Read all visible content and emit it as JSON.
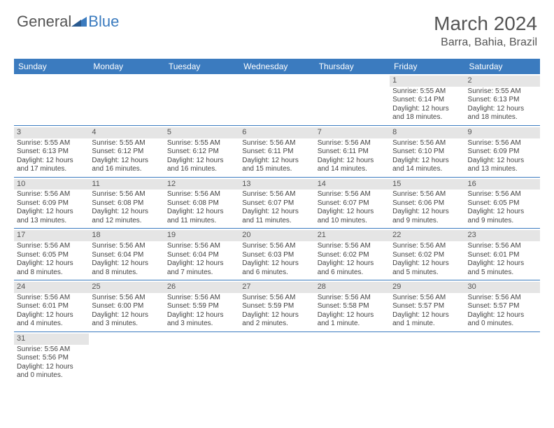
{
  "logo": {
    "text1": "General",
    "text2": "Blue"
  },
  "header": {
    "month": "March 2024",
    "location": "Barra, Bahia, Brazil"
  },
  "dayNames": [
    "Sunday",
    "Monday",
    "Tuesday",
    "Wednesday",
    "Thursday",
    "Friday",
    "Saturday"
  ],
  "colors": {
    "headerBg": "#3b7bbf",
    "text": "#444444",
    "grayBar": "#e5e5e5"
  },
  "weeks": [
    [
      null,
      null,
      null,
      null,
      null,
      {
        "d": "1",
        "sr": "5:55 AM",
        "ss": "6:14 PM",
        "dl1": "12 hours",
        "dl2": "and 18 minutes."
      },
      {
        "d": "2",
        "sr": "5:55 AM",
        "ss": "6:13 PM",
        "dl1": "12 hours",
        "dl2": "and 18 minutes."
      }
    ],
    [
      {
        "d": "3",
        "sr": "5:55 AM",
        "ss": "6:13 PM",
        "dl1": "12 hours",
        "dl2": "and 17 minutes."
      },
      {
        "d": "4",
        "sr": "5:55 AM",
        "ss": "6:12 PM",
        "dl1": "12 hours",
        "dl2": "and 16 minutes."
      },
      {
        "d": "5",
        "sr": "5:55 AM",
        "ss": "6:12 PM",
        "dl1": "12 hours",
        "dl2": "and 16 minutes."
      },
      {
        "d": "6",
        "sr": "5:56 AM",
        "ss": "6:11 PM",
        "dl1": "12 hours",
        "dl2": "and 15 minutes."
      },
      {
        "d": "7",
        "sr": "5:56 AM",
        "ss": "6:11 PM",
        "dl1": "12 hours",
        "dl2": "and 14 minutes."
      },
      {
        "d": "8",
        "sr": "5:56 AM",
        "ss": "6:10 PM",
        "dl1": "12 hours",
        "dl2": "and 14 minutes."
      },
      {
        "d": "9",
        "sr": "5:56 AM",
        "ss": "6:09 PM",
        "dl1": "12 hours",
        "dl2": "and 13 minutes."
      }
    ],
    [
      {
        "d": "10",
        "sr": "5:56 AM",
        "ss": "6:09 PM",
        "dl1": "12 hours",
        "dl2": "and 13 minutes."
      },
      {
        "d": "11",
        "sr": "5:56 AM",
        "ss": "6:08 PM",
        "dl1": "12 hours",
        "dl2": "and 12 minutes."
      },
      {
        "d": "12",
        "sr": "5:56 AM",
        "ss": "6:08 PM",
        "dl1": "12 hours",
        "dl2": "and 11 minutes."
      },
      {
        "d": "13",
        "sr": "5:56 AM",
        "ss": "6:07 PM",
        "dl1": "12 hours",
        "dl2": "and 11 minutes."
      },
      {
        "d": "14",
        "sr": "5:56 AM",
        "ss": "6:07 PM",
        "dl1": "12 hours",
        "dl2": "and 10 minutes."
      },
      {
        "d": "15",
        "sr": "5:56 AM",
        "ss": "6:06 PM",
        "dl1": "12 hours",
        "dl2": "and 9 minutes."
      },
      {
        "d": "16",
        "sr": "5:56 AM",
        "ss": "6:05 PM",
        "dl1": "12 hours",
        "dl2": "and 9 minutes."
      }
    ],
    [
      {
        "d": "17",
        "sr": "5:56 AM",
        "ss": "6:05 PM",
        "dl1": "12 hours",
        "dl2": "and 8 minutes."
      },
      {
        "d": "18",
        "sr": "5:56 AM",
        "ss": "6:04 PM",
        "dl1": "12 hours",
        "dl2": "and 8 minutes."
      },
      {
        "d": "19",
        "sr": "5:56 AM",
        "ss": "6:04 PM",
        "dl1": "12 hours",
        "dl2": "and 7 minutes."
      },
      {
        "d": "20",
        "sr": "5:56 AM",
        "ss": "6:03 PM",
        "dl1": "12 hours",
        "dl2": "and 6 minutes."
      },
      {
        "d": "21",
        "sr": "5:56 AM",
        "ss": "6:02 PM",
        "dl1": "12 hours",
        "dl2": "and 6 minutes."
      },
      {
        "d": "22",
        "sr": "5:56 AM",
        "ss": "6:02 PM",
        "dl1": "12 hours",
        "dl2": "and 5 minutes."
      },
      {
        "d": "23",
        "sr": "5:56 AM",
        "ss": "6:01 PM",
        "dl1": "12 hours",
        "dl2": "and 5 minutes."
      }
    ],
    [
      {
        "d": "24",
        "sr": "5:56 AM",
        "ss": "6:01 PM",
        "dl1": "12 hours",
        "dl2": "and 4 minutes."
      },
      {
        "d": "25",
        "sr": "5:56 AM",
        "ss": "6:00 PM",
        "dl1": "12 hours",
        "dl2": "and 3 minutes."
      },
      {
        "d": "26",
        "sr": "5:56 AM",
        "ss": "5:59 PM",
        "dl1": "12 hours",
        "dl2": "and 3 minutes."
      },
      {
        "d": "27",
        "sr": "5:56 AM",
        "ss": "5:59 PM",
        "dl1": "12 hours",
        "dl2": "and 2 minutes."
      },
      {
        "d": "28",
        "sr": "5:56 AM",
        "ss": "5:58 PM",
        "dl1": "12 hours",
        "dl2": "and 1 minute."
      },
      {
        "d": "29",
        "sr": "5:56 AM",
        "ss": "5:57 PM",
        "dl1": "12 hours",
        "dl2": "and 1 minute."
      },
      {
        "d": "30",
        "sr": "5:56 AM",
        "ss": "5:57 PM",
        "dl1": "12 hours",
        "dl2": "and 0 minutes."
      }
    ],
    [
      {
        "d": "31",
        "sr": "5:56 AM",
        "ss": "5:56 PM",
        "dl1": "12 hours",
        "dl2": "and 0 minutes."
      },
      null,
      null,
      null,
      null,
      null,
      null
    ]
  ],
  "labels": {
    "sunrise": "Sunrise:",
    "sunset": "Sunset:",
    "daylight": "Daylight:"
  }
}
